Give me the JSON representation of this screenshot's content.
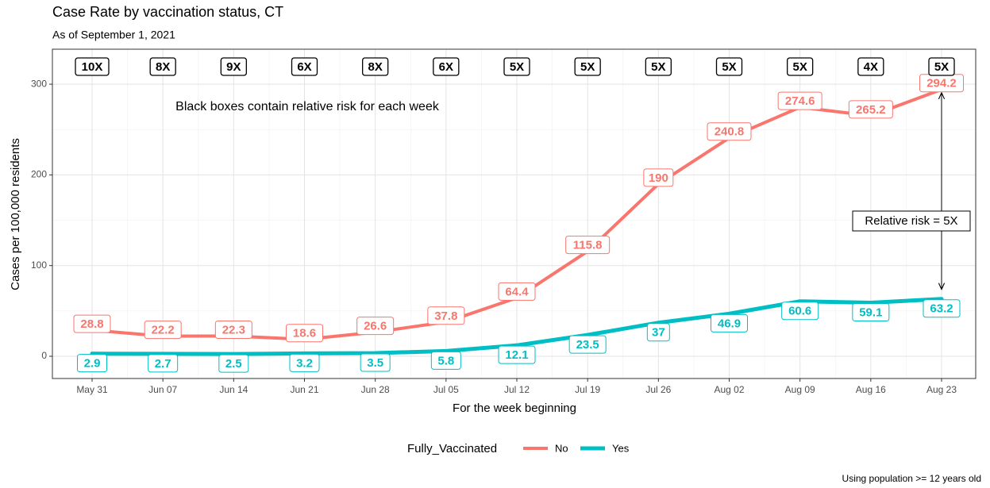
{
  "chart_data": {
    "type": "line",
    "title": "Case Rate by vaccination status, CT",
    "subtitle": "As of September 1, 2021",
    "x_label": "For the week beginning",
    "y_label": "Cases per 100,000 residents",
    "categories": [
      "May 31",
      "Jun 07",
      "Jun 14",
      "Jun 21",
      "Jun 28",
      "Jul 05",
      "Jul 12",
      "Jul 19",
      "Jul 26",
      "Aug 02",
      "Aug 09",
      "Aug 16",
      "Aug 23"
    ],
    "series": [
      {
        "name": "No",
        "color": "#f8766d",
        "values": [
          28.8,
          22.2,
          22.3,
          18.6,
          26.6,
          37.8,
          64.4,
          115.8,
          190,
          240.8,
          274.6,
          265.2,
          294.2
        ]
      },
      {
        "name": "Yes",
        "color": "#00bfc4",
        "values": [
          2.9,
          2.7,
          2.5,
          3.2,
          3.5,
          5.8,
          12.1,
          23.5,
          37,
          46.9,
          60.6,
          59.1,
          63.2
        ]
      }
    ],
    "relative_risk": [
      "10X",
      "8X",
      "9X",
      "6X",
      "8X",
      "6X",
      "5X",
      "5X",
      "5X",
      "5X",
      "5X",
      "4X",
      "5X"
    ],
    "note": "Black boxes contain relative risk for each week",
    "arrow_label": "Relative risk = 5X",
    "legend_title": "Fully_Vaccinated",
    "legend_position": "bottom",
    "caption": "Using population >= 12 years old",
    "ylim": [
      -24.5,
      338.6
    ],
    "yticks": [
      0,
      100,
      200,
      300
    ],
    "grid": true
  }
}
